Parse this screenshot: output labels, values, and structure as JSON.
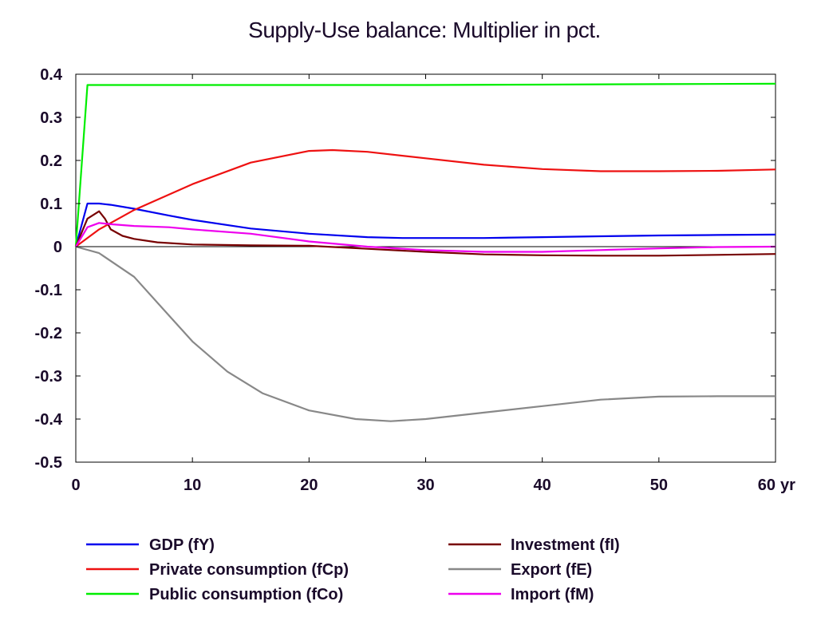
{
  "chart_data": {
    "type": "line",
    "title": "Supply-Use balance: Multiplier in pct.",
    "x_unit_label": "yr",
    "xlim": [
      0,
      60
    ],
    "ylim": [
      -0.5,
      0.4
    ],
    "x_ticks": [
      "0",
      "10",
      "20",
      "30",
      "40",
      "50",
      "60"
    ],
    "y_ticks": [
      "0.4",
      "0.3",
      "0.2",
      "0.1",
      "0",
      "-0.1",
      "-0.2",
      "-0.3",
      "-0.4",
      "-0.5"
    ],
    "grid": false,
    "legend": "bottom",
    "series": [
      {
        "name": "GDP (fY)",
        "color": "#0000ee",
        "x": [
          0,
          1,
          2,
          3,
          5,
          8,
          10,
          15,
          20,
          25,
          28,
          30,
          35,
          40,
          45,
          50,
          55,
          60
        ],
        "y": [
          0,
          0.1,
          0.1,
          0.097,
          0.088,
          0.072,
          0.062,
          0.042,
          0.03,
          0.022,
          0.02,
          0.02,
          0.02,
          0.022,
          0.024,
          0.026,
          0.027,
          0.028
        ]
      },
      {
        "name": "Private consumption (fCp)",
        "color": "#ee1111",
        "x": [
          0,
          2,
          5,
          10,
          15,
          20,
          22,
          25,
          30,
          35,
          40,
          45,
          50,
          55,
          60
        ],
        "y": [
          0,
          0.04,
          0.085,
          0.145,
          0.195,
          0.222,
          0.224,
          0.22,
          0.205,
          0.19,
          0.18,
          0.175,
          0.175,
          0.176,
          0.179
        ]
      },
      {
        "name": "Public consumption (fCo)",
        "color": "#00ee00",
        "x": [
          0,
          1,
          2,
          10,
          20,
          30,
          40,
          50,
          60
        ],
        "y": [
          0,
          0.375,
          0.375,
          0.375,
          0.375,
          0.375,
          0.376,
          0.377,
          0.378
        ]
      },
      {
        "name": "Investment (fI)",
        "color": "#770000",
        "x": [
          0,
          1,
          2,
          2.5,
          3,
          4,
          5,
          7,
          10,
          15,
          20,
          25,
          30,
          35,
          40,
          45,
          50,
          55,
          60
        ],
        "y": [
          0,
          0.065,
          0.082,
          0.065,
          0.04,
          0.025,
          0.018,
          0.01,
          0.005,
          0.003,
          0.002,
          -0.005,
          -0.012,
          -0.018,
          -0.02,
          -0.021,
          -0.021,
          -0.019,
          -0.017
        ]
      },
      {
        "name": "Export (fE)",
        "color": "#888888",
        "x": [
          0,
          2,
          5,
          8,
          10,
          13,
          16,
          20,
          24,
          27,
          30,
          35,
          40,
          45,
          50,
          55,
          60
        ],
        "y": [
          0,
          -0.015,
          -0.07,
          -0.16,
          -0.22,
          -0.29,
          -0.34,
          -0.38,
          -0.4,
          -0.405,
          -0.4,
          -0.385,
          -0.37,
          -0.355,
          -0.348,
          -0.347,
          -0.347
        ]
      },
      {
        "name": "Import (fM)",
        "color": "#ee00ee",
        "x": [
          0,
          1,
          2,
          3,
          5,
          8,
          10,
          15,
          20,
          25,
          30,
          35,
          40,
          45,
          50,
          55,
          60
        ],
        "y": [
          0,
          0.045,
          0.055,
          0.052,
          0.048,
          0.045,
          0.04,
          0.03,
          0.012,
          0.0,
          -0.008,
          -0.012,
          -0.012,
          -0.008,
          -0.004,
          -0.001,
          0.0
        ]
      }
    ]
  }
}
